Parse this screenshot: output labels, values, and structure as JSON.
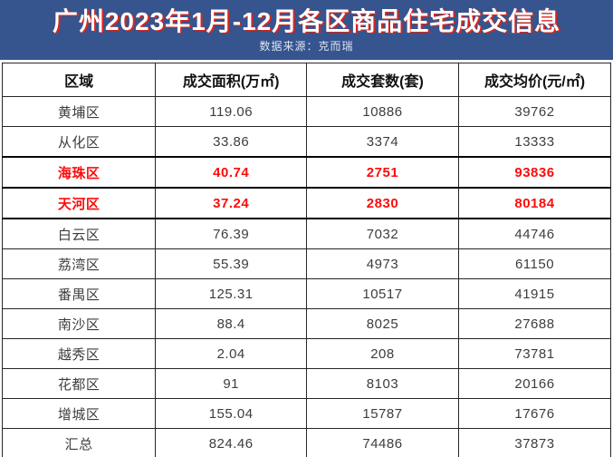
{
  "banner": {
    "title": "广州2023年1月-12月各区商品住宅成交信息",
    "subtitle": "数据来源：克而瑞",
    "bg_color": "#36548E",
    "title_color": "#FFFFFF",
    "title_shadow_color": "#D8261D"
  },
  "chart_data": {
    "type": "table",
    "title": "广州2023年1月-12月各区商品住宅成交信息",
    "source": "数据来源：克而瑞",
    "columns": [
      "区域",
      "成交面积(万㎡)",
      "成交套数(套)",
      "成交均价(元/㎡)"
    ],
    "rows": [
      {
        "district": "黄埔区",
        "area": "119.06",
        "units": "10886",
        "avg_price": "39762",
        "highlight": false
      },
      {
        "district": "从化区",
        "area": "33.86",
        "units": "3374",
        "avg_price": "13333",
        "highlight": false
      },
      {
        "district": "海珠区",
        "area": "40.74",
        "units": "2751",
        "avg_price": "93836",
        "highlight": true
      },
      {
        "district": "天河区",
        "area": "37.24",
        "units": "2830",
        "avg_price": "80184",
        "highlight": true
      },
      {
        "district": "白云区",
        "area": "76.39",
        "units": "7032",
        "avg_price": "44746",
        "highlight": false
      },
      {
        "district": "荔湾区",
        "area": "55.39",
        "units": "4973",
        "avg_price": "61150",
        "highlight": false
      },
      {
        "district": "番禺区",
        "area": "125.31",
        "units": "10517",
        "avg_price": "41915",
        "highlight": false
      },
      {
        "district": "南沙区",
        "area": "88.4",
        "units": "8025",
        "avg_price": "27688",
        "highlight": false
      },
      {
        "district": "越秀区",
        "area": "2.04",
        "units": "208",
        "avg_price": "73781",
        "highlight": false
      },
      {
        "district": "花都区",
        "area": "91",
        "units": "8103",
        "avg_price": "20166",
        "highlight": false
      },
      {
        "district": "增城区",
        "area": "155.04",
        "units": "15787",
        "avg_price": "17676",
        "highlight": false
      },
      {
        "district": "汇总",
        "area": "824.46",
        "units": "74486",
        "avg_price": "37873",
        "highlight": false
      }
    ],
    "highlight_color": "#FE0B0B",
    "text_color": "#3D3D3D",
    "border_color": "#262626"
  }
}
